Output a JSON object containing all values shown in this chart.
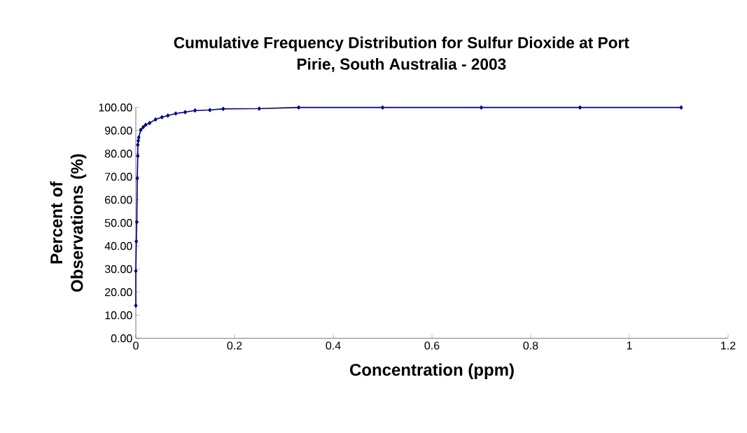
{
  "chart_data": {
    "type": "line",
    "title": "Cumulative Frequency Distribution for Sulfur Dioxide at Port Pirie, South Australia - 2003",
    "xlabel": "Concentration (ppm)",
    "ylabel": "Percent of Observations (%)",
    "x": [
      0,
      0,
      0.001,
      0.002,
      0.003,
      0.004,
      0.004,
      0.005,
      0.006,
      0.01,
      0.015,
      0.02,
      0.028,
      0.04,
      0.053,
      0.065,
      0.081,
      0.1,
      0.12,
      0.15,
      0.177,
      0.25,
      0.33,
      0.5,
      0.7,
      0.9,
      1.105
    ],
    "series": [
      {
        "color": "#000080",
        "values": [
          14.2,
          29.2,
          42,
          50.4,
          69.3,
          79.0,
          83.8,
          85.6,
          87.0,
          90.3,
          91.5,
          92.5,
          93.3,
          94.8,
          95.8,
          96.5,
          97.4,
          98.0,
          98.7,
          98.9,
          99.4,
          99.5,
          100,
          100,
          100,
          100,
          100
        ]
      }
    ],
    "xlim": [
      0,
      1.2
    ],
    "xticks": [
      0,
      0.2,
      0.4,
      0.6,
      0.8,
      1,
      1.2
    ],
    "ylim": [
      0,
      100
    ],
    "yticks": [
      {
        "value": 0,
        "label": "0.00"
      },
      {
        "value": 10,
        "label": "10.00"
      },
      {
        "value": 20,
        "label": "20.00"
      },
      {
        "value": 30,
        "label": "30.00"
      },
      {
        "value": 40,
        "label": "40.00"
      },
      {
        "value": 50,
        "label": "50.00"
      },
      {
        "value": 60,
        "label": "60.00"
      },
      {
        "value": 70,
        "label": "70.00"
      },
      {
        "value": 80,
        "label": "80.00"
      },
      {
        "value": 90,
        "label": "90.00"
      },
      {
        "value": 100,
        "label": "100.00"
      }
    ],
    "grid": false,
    "marker": "diamond",
    "line_style": "solid"
  }
}
